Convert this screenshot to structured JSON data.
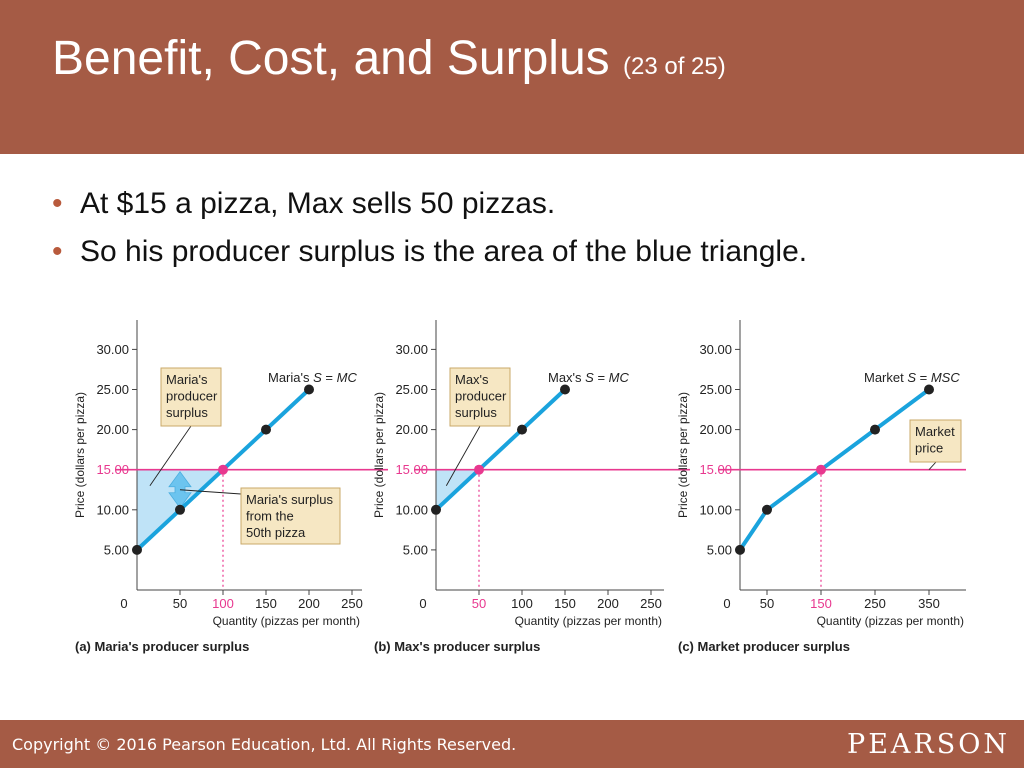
{
  "header": {
    "title": "Benefit, Cost, and Surplus",
    "subtitle": "(23 of 25)"
  },
  "bullets": [
    "At $15 a pizza, Max sells 50 pizzas.",
    "So his producer surplus is the area of the blue triangle."
  ],
  "footer": {
    "copyright": "Copyright © 2016 Pearson Education, Ltd. All Rights Reserved.",
    "logo": "PEARSON"
  },
  "colors": {
    "header_bg": "#a55b45",
    "supply_line": "#1aa3dd",
    "surplus_fill": "#bfe3f7",
    "price_line": "#e8388f",
    "label_box_fill": "#f6e7c3",
    "label_box_border": "#c9a96a",
    "point": "#222222"
  },
  "chart_data": [
    {
      "type": "line",
      "panel_title": "(a) Maria's producer surplus",
      "xlabel": "Quantity (pizzas per month)",
      "ylabel": "Price (dollars per pizza)",
      "x_ticks": [
        0,
        50,
        100,
        150,
        200,
        250
      ],
      "y_ticks": [
        5,
        10,
        15,
        20,
        25,
        30
      ],
      "y_tick_labels": [
        "5.00",
        "10.00",
        "15.00",
        "20.00",
        "25.00",
        "30.00"
      ],
      "xlim": [
        0,
        250
      ],
      "ylim": [
        0,
        30
      ],
      "highlight_x": 100,
      "price": 15,
      "price_label": "15.00",
      "supply": {
        "label_prefix": "Maria's",
        "label_var": "S",
        "label_eq": "=",
        "label_curve": "MC",
        "x": [
          0,
          50,
          100,
          150,
          200
        ],
        "y": [
          5,
          10,
          15,
          20,
          25
        ],
        "markers": [
          {
            "x": 0,
            "y": 5,
            "highlight": false
          },
          {
            "x": 50,
            "y": 10,
            "highlight": false
          },
          {
            "x": 100,
            "y": 15,
            "highlight": true
          },
          {
            "x": 150,
            "y": 20,
            "highlight": false
          },
          {
            "x": 200,
            "y": 25,
            "highlight": false
          }
        ]
      },
      "surplus_region": {
        "x": [
          0,
          100
        ],
        "price": 15
      },
      "double_arrow": {
        "x": 50,
        "y_from": 10,
        "y_to": 15
      },
      "annotations": [
        {
          "lines": [
            "Maria's",
            "producer",
            "surplus"
          ],
          "points_to": {
            "x": 15,
            "y": 13
          }
        },
        {
          "lines": [
            "Maria's surplus",
            "from the",
            "50th pizza"
          ],
          "points_to": {
            "x": 50,
            "y": 12.5
          }
        }
      ]
    },
    {
      "type": "line",
      "panel_title": "(b) Max's producer surplus",
      "xlabel": "Quantity (pizzas per month)",
      "ylabel": "Price (dollars per pizza)",
      "x_ticks": [
        0,
        50,
        100,
        150,
        200,
        250
      ],
      "y_ticks": [
        5,
        10,
        15,
        20,
        25,
        30
      ],
      "y_tick_labels": [
        "5.00",
        "10.00",
        "15.00",
        "20.00",
        "25.00",
        "30.00"
      ],
      "xlim": [
        0,
        250
      ],
      "ylim": [
        0,
        30
      ],
      "highlight_x": 50,
      "price": 15,
      "price_label": "15.00",
      "supply": {
        "label_prefix": "Max's",
        "label_var": "S",
        "label_eq": "=",
        "label_curve": "MC",
        "x": [
          0,
          50,
          100,
          150
        ],
        "y": [
          10,
          15,
          20,
          25
        ],
        "markers": [
          {
            "x": 0,
            "y": 10,
            "highlight": false
          },
          {
            "x": 50,
            "y": 15,
            "highlight": true
          },
          {
            "x": 100,
            "y": 20,
            "highlight": false
          },
          {
            "x": 150,
            "y": 25,
            "highlight": false
          }
        ]
      },
      "surplus_region": {
        "x": [
          0,
          50
        ],
        "price": 15
      },
      "annotations": [
        {
          "lines": [
            "Max's",
            "producer",
            "surplus"
          ],
          "points_to": {
            "x": 12,
            "y": 13
          }
        }
      ]
    },
    {
      "type": "line",
      "panel_title": "(c) Market producer surplus",
      "xlabel": "Quantity (pizzas per month)",
      "ylabel": "Price (dollars per pizza)",
      "x_ticks": [
        0,
        50,
        150,
        250,
        350
      ],
      "x_tick_labels": [
        "0",
        "50",
        "150",
        "250",
        "350"
      ],
      "y_ticks": [
        5,
        10,
        15,
        20,
        25,
        30
      ],
      "y_tick_labels": [
        "5.00",
        "10.00",
        "15.00",
        "20.00",
        "25.00",
        "30.00"
      ],
      "xlim": [
        0,
        400
      ],
      "ylim": [
        0,
        30
      ],
      "highlight_x": 150,
      "price": 15,
      "price_label": "15.00",
      "supply": {
        "label_prefix": "Market",
        "label_var": "S",
        "label_eq": "=",
        "label_curve": "MSC",
        "x": [
          0,
          50,
          150,
          250,
          350
        ],
        "y": [
          5,
          10,
          15,
          20,
          25
        ],
        "markers": [
          {
            "x": 0,
            "y": 5,
            "highlight": false
          },
          {
            "x": 50,
            "y": 10,
            "highlight": false
          },
          {
            "x": 150,
            "y": 15,
            "highlight": true
          },
          {
            "x": 250,
            "y": 20,
            "highlight": false
          },
          {
            "x": 350,
            "y": 25,
            "highlight": false
          }
        ]
      },
      "annotations": [
        {
          "lines": [
            "Market",
            "price"
          ],
          "points_to": {
            "x": 350,
            "y": 15
          }
        }
      ]
    }
  ]
}
